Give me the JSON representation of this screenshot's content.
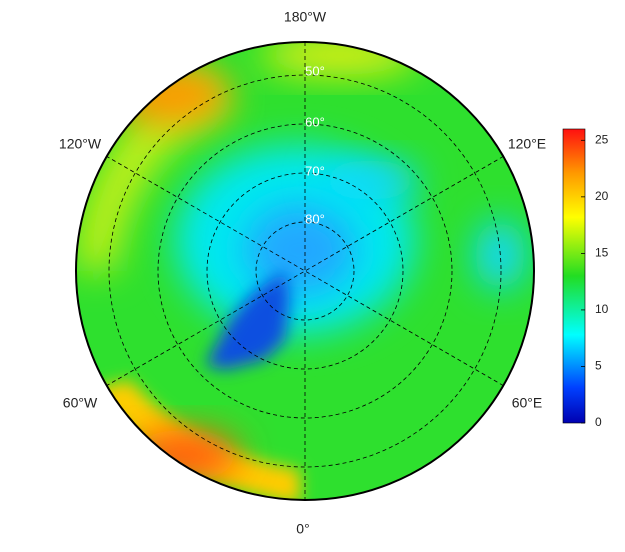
{
  "map": {
    "longitude_labels": [
      "180°W",
      "120°E",
      "60°E",
      "0°",
      "60°W",
      "120°W"
    ],
    "latitude_labels": [
      "50°",
      "60°",
      "70°",
      "80°"
    ]
  },
  "colorbar": {
    "lim": [
      0,
      26
    ],
    "ticks": [
      0,
      5,
      10,
      15,
      20,
      25
    ]
  }
}
